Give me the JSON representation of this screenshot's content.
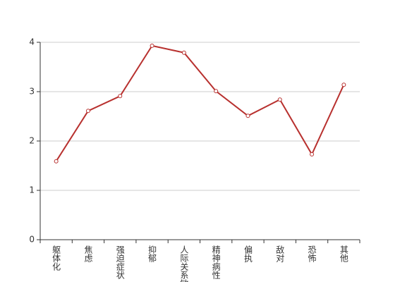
{
  "chart_data": {
    "type": "line",
    "categories": [
      "躯体化",
      "焦虑",
      "强迫症状",
      "抑郁",
      "人际关系敏感",
      "精神病性",
      "偏执",
      "敌对",
      "恐怖",
      "其他"
    ],
    "series": [
      {
        "name": null,
        "color": "#b8312f",
        "values": [
          1.59,
          2.61,
          2.91,
          3.93,
          3.79,
          3.01,
          2.51,
          2.84,
          1.73,
          3.14
        ]
      }
    ],
    "ylim": [
      0,
      4
    ],
    "yticks": [
      0,
      1,
      2,
      3,
      4
    ],
    "grid": true
  }
}
